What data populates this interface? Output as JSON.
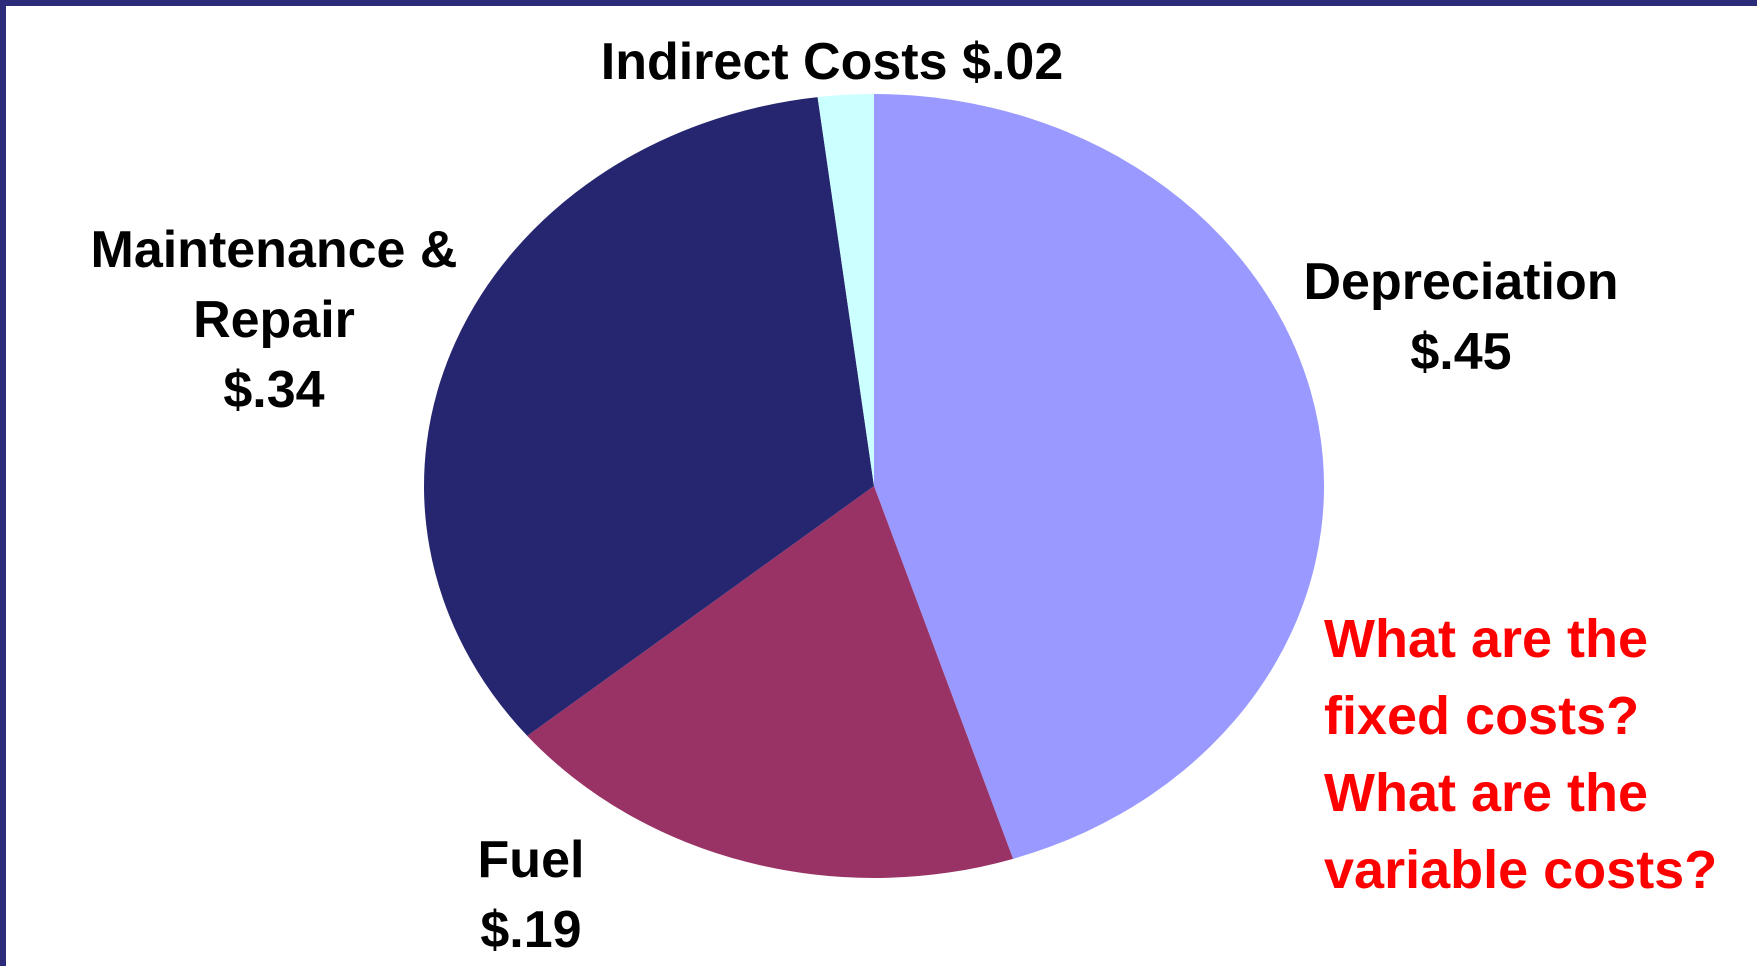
{
  "chart_data": {
    "type": "pie",
    "categories": [
      "Depreciation",
      "Fuel",
      "Maintenance & Repair",
      "Indirect Costs"
    ],
    "values": [
      0.45,
      0.19,
      0.34,
      0.02
    ],
    "value_labels": [
      "$.45",
      "$.19",
      "$.34",
      "$.02"
    ],
    "colors": [
      "#9999ff",
      "#993366",
      "#262670",
      "#ccffff"
    ],
    "annotation": [
      "What are the",
      "fixed costs?",
      "What are the",
      "variable costs?"
    ]
  }
}
